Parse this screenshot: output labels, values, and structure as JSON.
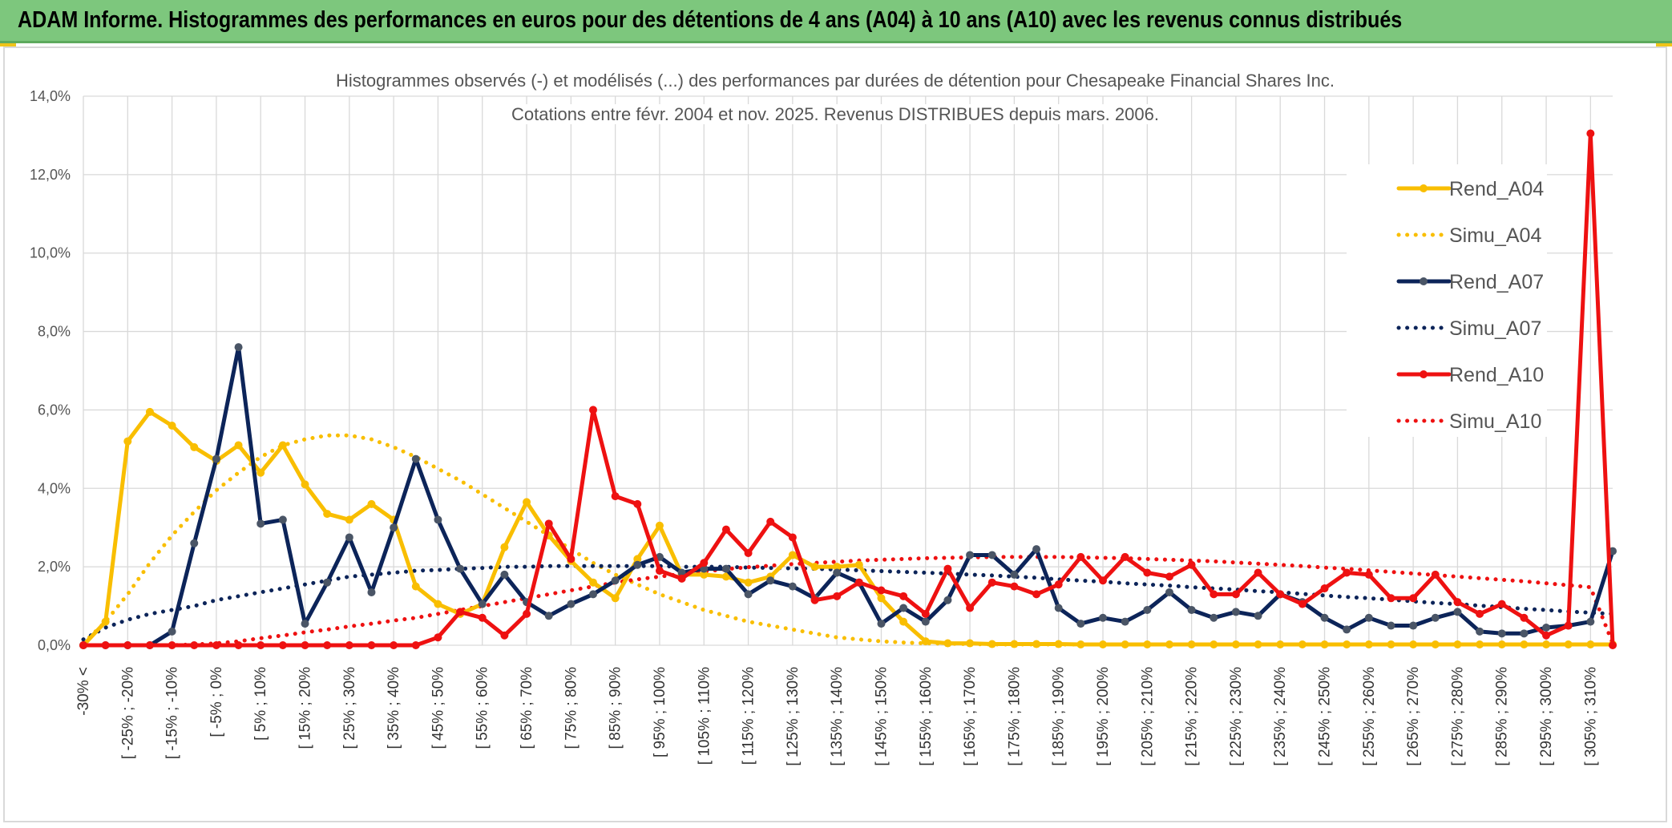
{
  "header": {
    "banner_text": "ADAM Informe. Histogrammes des performances en euros pour des détentions de 4 ans (A04) à 10 ans (A10) avec les revenus connus distribués"
  },
  "colors": {
    "banner_bg": "#7dc77d",
    "A04": "#f9be00",
    "A07": "#0c2459",
    "A07_marker": "#4a5566",
    "A10": "#ee1111",
    "grid": "#d9d9d9"
  },
  "chart_data": {
    "type": "line",
    "title": "Histogrammes observés (-) et modélisés (...) des performances par durées de détention pour Chesapeake Financial Shares Inc.",
    "subtitle": "Cotations entre févr. 2004 et nov. 2025. Revenus DISTRIBUES depuis mars. 2006.",
    "xlabel": "",
    "ylabel": "",
    "ylim": [
      0,
      14
    ],
    "y_ticks": [
      "0,0%",
      "2,0%",
      "4,0%",
      "6,0%",
      "8,0%",
      "10,0%",
      "12,0%",
      "14,0%"
    ],
    "grid": true,
    "legend_position": "top-right",
    "x_tick_labels": [
      "-30% <",
      "[ -25% ; -20%",
      "[ -15% ; -10%",
      "[ -5% ; 0%",
      "[ 5% ; 10%",
      "[ 15% ; 20%",
      "[ 25% ; 30%",
      "[ 35% ; 40%",
      "[ 45% ; 50%",
      "[ 55% ; 60%",
      "[ 65% ; 70%",
      "[ 75% ; 80%",
      "[ 85% ; 90%",
      "[ 95% ; 100%",
      "[ 105% ; 110%",
      "[ 115% ; 120%",
      "[ 125% ; 130%",
      "[ 135% ; 140%",
      "[ 145% ; 150%",
      "[ 155% ; 160%",
      "[ 165% ; 170%",
      "[ 175% ; 180%",
      "[ 185% ; 190%",
      "[ 195% ; 200%",
      "[ 205% ; 210%",
      "[ 215% ; 220%",
      "[ 225% ; 230%",
      "[ 235% ; 240%",
      "[ 245% ; 250%",
      "[ 255% ; 260%",
      "[ 265% ; 270%",
      "[ 275% ; 280%",
      "[ 285% ; 290%",
      "[ 295% ; 300%",
      "[ 305% ; 310%"
    ],
    "series": [
      {
        "name": "Rend_A04",
        "style": "solid",
        "color": "#f9be00",
        "values": [
          0,
          0.6,
          5.2,
          5.95,
          5.6,
          5.05,
          4.7,
          5.1,
          4.4,
          5.1,
          4.1,
          3.35,
          3.2,
          3.6,
          3.2,
          1.5,
          1.05,
          0.8,
          1.05,
          2.5,
          3.65,
          2.8,
          2.15,
          1.6,
          1.2,
          2.2,
          3.05,
          1.8,
          1.8,
          1.75,
          1.6,
          1.75,
          2.3,
          2.0,
          2.0,
          2.05,
          1.2,
          0.6,
          0.1,
          0.05,
          0.05,
          0.03,
          0.03,
          0.03,
          0.03,
          0.02,
          0.02,
          0.02,
          0.02,
          0.02,
          0.02,
          0.02,
          0.02,
          0.02,
          0.02,
          0.02,
          0.02,
          0.02,
          0.02,
          0.02,
          0.02,
          0.02,
          0.02,
          0.02,
          0.02,
          0.02,
          0.02,
          0.02,
          0.02,
          0.02
        ]
      },
      {
        "name": "Simu_A04",
        "style": "dotted",
        "color": "#f9be00",
        "values": [
          0.05,
          0.6,
          1.3,
          2.1,
          2.8,
          3.4,
          3.95,
          4.4,
          4.8,
          5.1,
          5.25,
          5.35,
          5.35,
          5.25,
          5.05,
          4.8,
          4.5,
          4.2,
          3.85,
          3.5,
          3.15,
          2.8,
          2.45,
          2.1,
          1.8,
          1.55,
          1.3,
          1.1,
          0.9,
          0.75,
          0.6,
          0.5,
          0.4,
          0.3,
          0.2,
          0.15,
          0.1,
          0.07,
          0.05,
          0.04,
          0.03,
          0.02,
          0.02,
          0.02,
          0.02,
          0.02,
          0.02,
          0.02,
          0.02,
          0.02,
          0.02,
          0.02,
          0.02,
          0.02,
          0.02,
          0.02,
          0.02,
          0.02,
          0.02,
          0.02,
          0.02,
          0.02,
          0.02,
          0.02,
          0.02,
          0.02,
          0.02,
          0.02,
          0.02,
          0.02
        ]
      },
      {
        "name": "Rend_A07",
        "style": "solid",
        "color": "#0c2459",
        "values": [
          0,
          0,
          0,
          0,
          0.35,
          2.6,
          4.75,
          7.6,
          3.1,
          3.2,
          0.55,
          1.6,
          2.75,
          1.35,
          3.0,
          4.75,
          3.2,
          1.95,
          1.05,
          1.8,
          1.1,
          0.75,
          1.05,
          1.3,
          1.65,
          2.05,
          2.25,
          1.85,
          1.95,
          1.95,
          1.3,
          1.65,
          1.5,
          1.2,
          1.85,
          1.6,
          0.55,
          0.95,
          0.6,
          1.15,
          2.3,
          2.3,
          1.8,
          2.45,
          0.95,
          0.55,
          0.7,
          0.6,
          0.9,
          1.35,
          0.9,
          0.7,
          0.85,
          0.75,
          1.3,
          1.1,
          0.7,
          0.4,
          0.7,
          0.5,
          0.5,
          0.7,
          0.85,
          0.35,
          0.3,
          0.3,
          0.45,
          0.5,
          0.6,
          2.4
        ]
      },
      {
        "name": "Simu_A07",
        "style": "dotted",
        "color": "#0c2459",
        "values": [
          0.15,
          0.45,
          0.65,
          0.8,
          0.9,
          1.0,
          1.15,
          1.25,
          1.35,
          1.45,
          1.55,
          1.65,
          1.75,
          1.8,
          1.85,
          1.9,
          1.92,
          1.95,
          1.97,
          2.0,
          2.0,
          2.02,
          2.02,
          2.02,
          2.02,
          2.02,
          2.02,
          2.0,
          2.0,
          2.0,
          1.98,
          1.97,
          1.96,
          1.95,
          1.93,
          1.91,
          1.89,
          1.87,
          1.85,
          1.83,
          1.8,
          1.78,
          1.75,
          1.72,
          1.68,
          1.65,
          1.62,
          1.58,
          1.55,
          1.52,
          1.48,
          1.45,
          1.42,
          1.38,
          1.35,
          1.31,
          1.27,
          1.23,
          1.2,
          1.16,
          1.12,
          1.08,
          1.05,
          1.01,
          0.97,
          0.93,
          0.9,
          0.86,
          0.83,
          0.8
        ]
      },
      {
        "name": "Rend_A10",
        "style": "solid",
        "color": "#ee1111",
        "values": [
          0,
          0,
          0,
          0,
          0,
          0,
          0,
          0,
          0,
          0,
          0,
          0,
          0,
          0,
          0,
          0,
          0.2,
          0.85,
          0.7,
          0.25,
          0.8,
          3.1,
          2.2,
          6.0,
          3.8,
          3.6,
          1.9,
          1.7,
          2.1,
          2.95,
          2.35,
          3.15,
          2.75,
          1.15,
          1.25,
          1.6,
          1.4,
          1.25,
          0.8,
          1.95,
          0.95,
          1.6,
          1.5,
          1.3,
          1.55,
          2.25,
          1.65,
          2.25,
          1.85,
          1.75,
          2.05,
          1.3,
          1.3,
          1.85,
          1.3,
          1.05,
          1.45,
          1.85,
          1.8,
          1.2,
          1.2,
          1.8,
          1.1,
          0.8,
          1.05,
          0.7,
          0.25,
          0.5,
          13.05,
          0
        ]
      },
      {
        "name": "Simu_A10",
        "style": "dotted",
        "color": "#ee1111",
        "values": [
          0,
          0,
          0,
          0,
          0,
          0.02,
          0.05,
          0.1,
          0.18,
          0.25,
          0.33,
          0.4,
          0.48,
          0.55,
          0.63,
          0.7,
          0.8,
          0.9,
          1.0,
          1.1,
          1.2,
          1.3,
          1.4,
          1.5,
          1.6,
          1.68,
          1.75,
          1.82,
          1.88,
          1.94,
          1.99,
          2.03,
          2.07,
          2.1,
          2.13,
          2.16,
          2.18,
          2.2,
          2.22,
          2.23,
          2.24,
          2.25,
          2.25,
          2.25,
          2.25,
          2.24,
          2.23,
          2.22,
          2.2,
          2.18,
          2.16,
          2.14,
          2.11,
          2.08,
          2.05,
          2.02,
          1.98,
          1.95,
          1.91,
          1.87,
          1.83,
          1.79,
          1.75,
          1.71,
          1.67,
          1.63,
          1.58,
          1.53,
          1.48,
          0.05
        ]
      }
    ]
  }
}
